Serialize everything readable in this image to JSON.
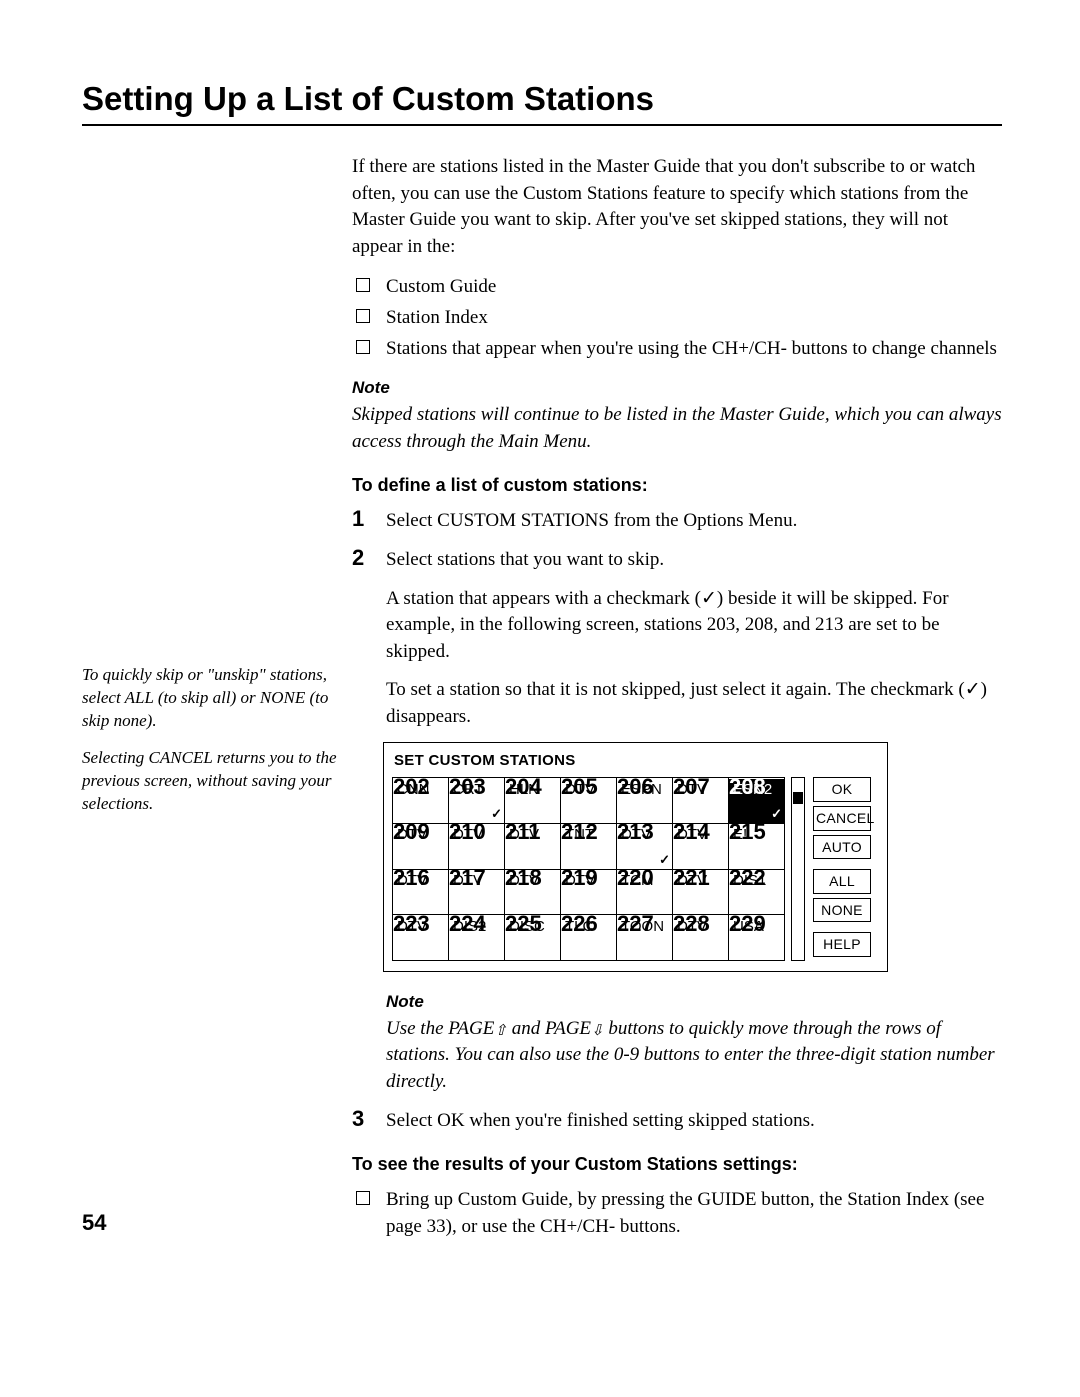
{
  "title": "Setting Up a List of Custom Stations",
  "intro": "If there are stations listed in the Master Guide that you don't subscribe to or watch often, you can use the Custom Stations feature to specify which stations from the Master Guide you want to skip. After you've set skipped stations, they will not appear in the:",
  "bullets": [
    "Custom Guide",
    "Station Index",
    "Stations that appear when you're using the CH+/CH- buttons to change channels"
  ],
  "note1_hd": "Note",
  "note1": "Skipped stations will continue to be listed in the Master Guide, which you can always access through the Main Menu.",
  "subhead1": "To define a list of custom stations:",
  "step1": "Select CUSTOM STATIONS from the Options Menu.",
  "step2": "Select stations that you want to skip.",
  "step2a": "A station that appears with a checkmark (✓) beside it will be skipped. For example, in the following screen, stations 203, 208, and 213 are set to be skipped.",
  "step2b": "To set a station so that it is not skipped, just select it again. The checkmark (✓) disappears.",
  "sidebar1": "To quickly skip or \"unskip\" stations, select ALL (to skip all) or NONE (to skip none).",
  "sidebar2": "Selecting CANCEL returns you to the previous screen, without saving your selections.",
  "fig": {
    "title": "SET CUSTOM STATIONS",
    "buttons": [
      "OK",
      "CANCEL",
      "AUTO",
      "ALL",
      "NONE",
      "HELP"
    ],
    "rows": [
      [
        {
          "n": "CNN",
          "c": "202"
        },
        {
          "n": "CRT",
          "c": "203",
          "chk": true
        },
        {
          "n": "HLN",
          "c": "204"
        },
        {
          "n": "DTV",
          "c": "205"
        },
        {
          "n": "ESPN",
          "c": "206"
        },
        {
          "n": "DTV",
          "c": "207"
        },
        {
          "n": "ESN2",
          "c": "208",
          "chk": true,
          "hl": true
        }
      ],
      [
        {
          "n": "DTV",
          "c": "209"
        },
        {
          "n": "DTV",
          "c": "210"
        },
        {
          "n": "DTV",
          "c": "211"
        },
        {
          "n": "TNT",
          "c": "212"
        },
        {
          "n": "DTV",
          "c": "213",
          "chk": true
        },
        {
          "n": "DTV",
          "c": "214"
        },
        {
          "n": "E!",
          "c": "215"
        }
      ],
      [
        {
          "n": "DTV",
          "c": "216"
        },
        {
          "n": "DTV",
          "c": "217"
        },
        {
          "n": "DTV",
          "c": "218"
        },
        {
          "n": "DTV",
          "c": "219"
        },
        {
          "n": "TCM",
          "c": "220"
        },
        {
          "n": "DTV",
          "c": "221"
        },
        {
          "n": "DIS1",
          "c": "222"
        }
      ],
      [
        {
          "n": "DTV",
          "c": "223"
        },
        {
          "n": "DIS2",
          "c": "224"
        },
        {
          "n": "DISC",
          "c": "225"
        },
        {
          "n": "TLC",
          "c": "226"
        },
        {
          "n": "TOON",
          "c": "227"
        },
        {
          "n": "DTV",
          "c": "228"
        },
        {
          "n": "USA",
          "c": "229"
        }
      ]
    ]
  },
  "note2_hd": "Note",
  "note2a": "Use the PAGE",
  "note2b": " and PAGE",
  "note2c": " buttons to quickly move through the rows of stations. You can also use the 0-9 buttons to enter the three-digit station number directly.",
  "step3": "Select OK when you're finished setting skipped stations.",
  "subhead2": "To see the results of your Custom Stations settings:",
  "result_bullet": "Bring up Custom Guide, by pressing the GUIDE button, the Station Index (see page 33), or use the CH+/CH- buttons.",
  "page_number": "54"
}
